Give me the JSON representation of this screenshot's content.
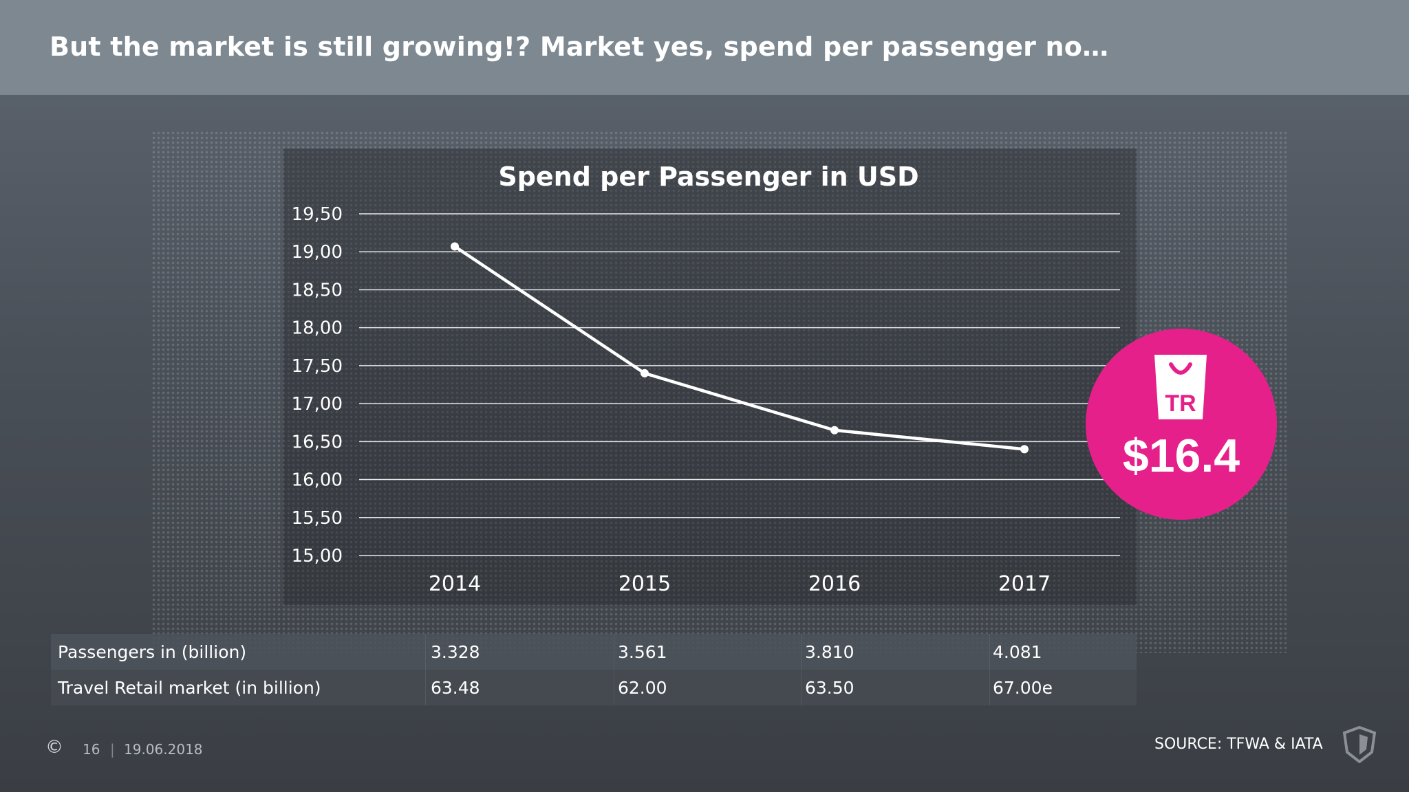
{
  "slide": {
    "title": "But the market is still growing!? Market yes, spend per passenger no…",
    "footer_page": "16",
    "footer_date": "19.06.2018",
    "source": "SOURCE: TFWA & IATA"
  },
  "badge": {
    "logo_text": "TR",
    "amount": "$16.4",
    "color": "#e5208b"
  },
  "table": {
    "rows": [
      {
        "label": "Passengers in (billion)",
        "values": [
          "3.328",
          "3.561",
          "3.810",
          "4.081"
        ]
      },
      {
        "label": "Travel Retail market (in billion)",
        "values": [
          "63.48",
          "62.00",
          "63.50",
          "67.00e"
        ]
      }
    ]
  },
  "chart_data": {
    "type": "line",
    "title": "Spend per Passenger in USD",
    "categories": [
      "2014",
      "2015",
      "2016",
      "2017"
    ],
    "series": [
      {
        "name": "Spend per Passenger",
        "values": [
          19.07,
          17.4,
          16.65,
          16.4
        ]
      }
    ],
    "ylim": [
      15.0,
      19.5
    ],
    "yticks": [
      19.5,
      19.0,
      18.5,
      18.0,
      17.5,
      17.0,
      16.5,
      16.0,
      15.5,
      15.0
    ],
    "ytick_labels": [
      "19,50",
      "19,00",
      "18,50",
      "18,00",
      "17,50",
      "17,00",
      "16,50",
      "16,00",
      "15,50",
      "15,00"
    ],
    "grid": true,
    "xlabel": "",
    "ylabel": ""
  }
}
